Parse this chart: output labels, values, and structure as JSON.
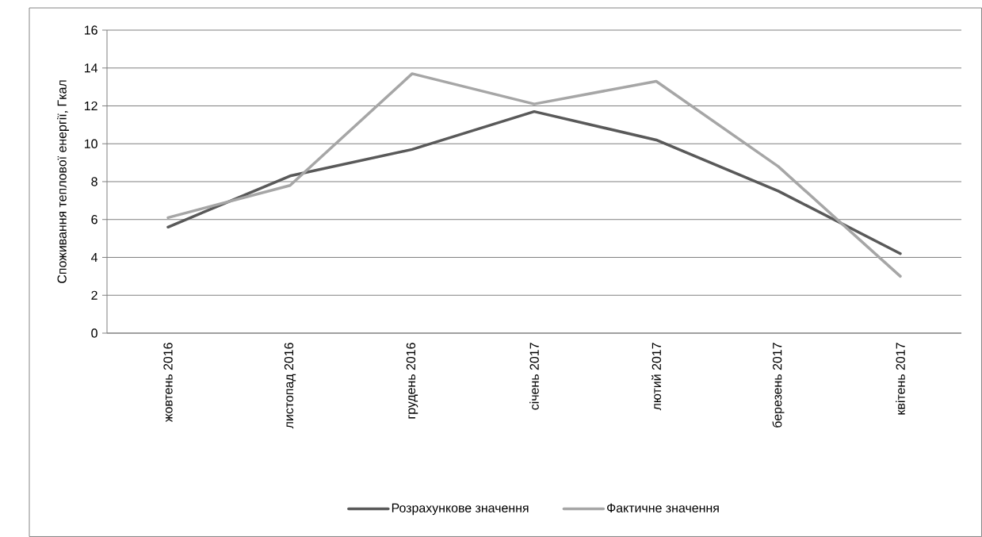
{
  "chart_data": {
    "type": "line",
    "ylabel": "Споживання теплової енергії, Гкал",
    "categories": [
      "жовтень 2016",
      "листопад 2016",
      "грудень 2016",
      "січень 2017",
      "лютий  2017",
      "березень 2017",
      "квітень 2017"
    ],
    "series": [
      {
        "name": "Розрахункове значення",
        "color": "#595959",
        "values": [
          5.6,
          8.3,
          9.7,
          11.7,
          10.2,
          7.5,
          4.2
        ]
      },
      {
        "name": "Фактичне значення",
        "color": "#a6a6a6",
        "values": [
          6.1,
          7.8,
          13.7,
          12.1,
          13.3,
          8.8,
          3.0
        ]
      }
    ],
    "ylim": [
      0,
      16
    ],
    "yticks": [
      0,
      2,
      4,
      6,
      8,
      10,
      12,
      14,
      16
    ],
    "grid": "y",
    "legend": "bottom",
    "marker": "none",
    "line_style": "solid"
  }
}
